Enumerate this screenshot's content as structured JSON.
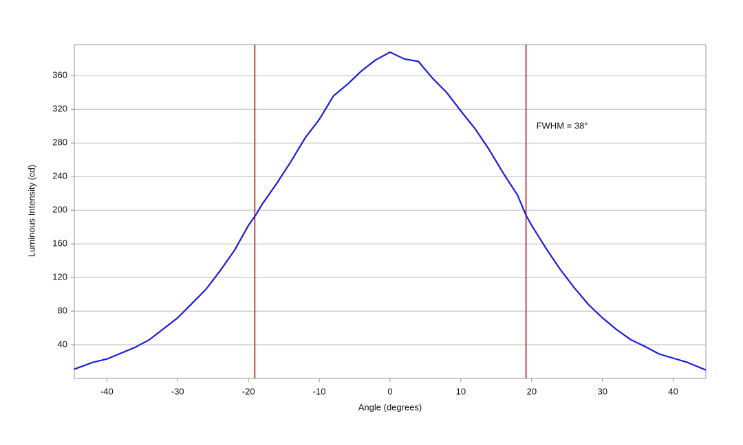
{
  "chart_data": {
    "type": "line",
    "xlabel": "Angle (degrees)",
    "ylabel": "Luminous Intensity (cd)",
    "annotation": "FWHM = 38°",
    "x": [
      -44.6,
      -42,
      -40,
      -38,
      -36,
      -34,
      -32,
      -30,
      -28,
      -26,
      -24,
      -22,
      -20,
      -19,
      -18,
      -16,
      -14,
      -12,
      -10,
      -8,
      -6,
      -4,
      -2,
      0,
      2,
      4,
      6,
      8,
      10,
      12,
      14,
      16,
      18,
      19.2,
      20,
      22,
      24,
      26,
      28,
      30,
      32,
      34,
      36,
      38,
      40,
      42,
      44.6
    ],
    "series": [
      {
        "color": "#1a1adf",
        "values": [
          11,
          19,
          23,
          30,
          37,
          46,
          59,
          72,
          89,
          106,
          128,
          152,
          182,
          194,
          208,
          232,
          258,
          286,
          308,
          336,
          350,
          366,
          379,
          388,
          380,
          377,
          357,
          340,
          318,
          297,
          272,
          244,
          218,
          194,
          182,
          155,
          130,
          108,
          88,
          72,
          58,
          46,
          38,
          29,
          24,
          19,
          10
        ]
      }
    ],
    "vlines": [
      -19.1,
      19.2
    ],
    "vline_color": "#c00000",
    "xlim": [
      -44.6,
      44.6
    ],
    "ylim": [
      0,
      397
    ],
    "xticks": [
      -40,
      -30,
      -20,
      -10,
      0,
      10,
      20,
      30,
      40
    ],
    "yticks": [
      40,
      80,
      120,
      160,
      200,
      240,
      280,
      320,
      360
    ],
    "grid": true
  }
}
